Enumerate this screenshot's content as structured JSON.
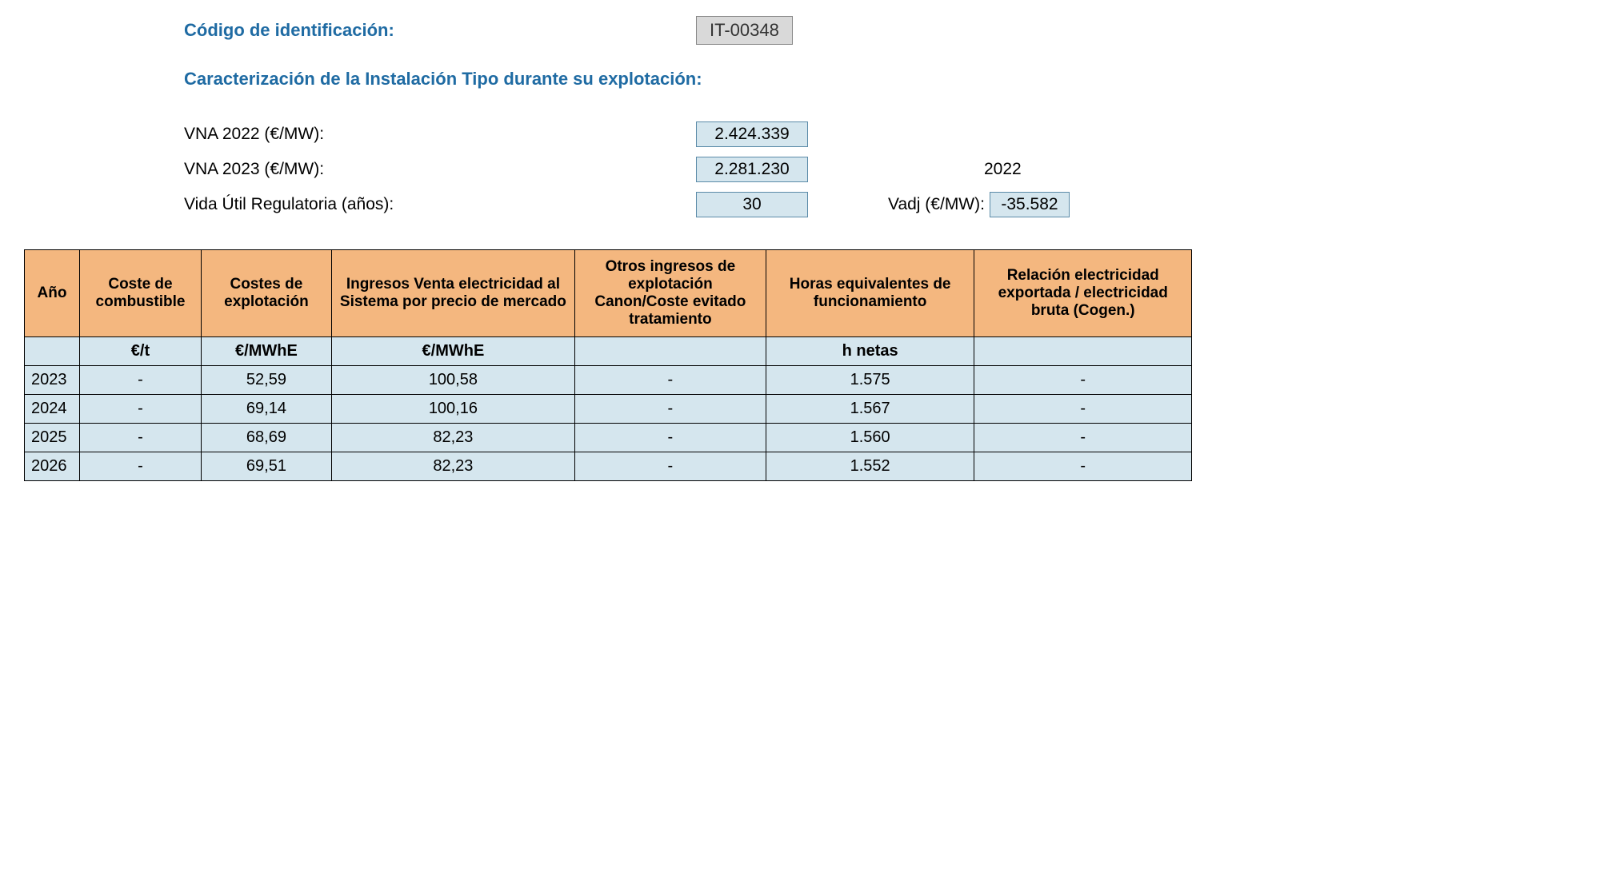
{
  "header": {
    "code_label": "Código de identificación:",
    "code_value": "IT-00348",
    "subtitle": "Caracterización de la Instalación Tipo durante su explotación:"
  },
  "params": {
    "vna2022_label": "VNA 2022 (€/MW):",
    "vna2022_value": "2.424.339",
    "vna2023_label": "VNA 2023 (€/MW):",
    "vna2023_value": "2.281.230",
    "year_ref": "2022",
    "life_label": "Vida Útil Regulatoria (años):",
    "life_value": "30",
    "vadj_label": "Vadj (€/MW):",
    "vadj_value": "-35.582"
  },
  "table": {
    "headers": {
      "year": "Año",
      "fuel": "Coste de combustible",
      "opex": "Costes de explotación",
      "income": "Ingresos Venta electricidad al Sistema por precio de mercado",
      "other": "Otros ingresos de explotación Canon/Coste evitado tratamiento",
      "hours": "Horas equivalentes de funcionamiento",
      "ratio": "Relación electricidad exportada / electricidad bruta (Cogen.)"
    },
    "units": {
      "year": "",
      "fuel": "€/t",
      "opex": "€/MWhE",
      "income": "€/MWhE",
      "other": "",
      "hours": "h netas",
      "ratio": ""
    },
    "rows": [
      {
        "year": "2023",
        "fuel": "-",
        "opex": "52,59",
        "income": "100,58",
        "other": "-",
        "hours": "1.575",
        "ratio": "-"
      },
      {
        "year": "2024",
        "fuel": "-",
        "opex": "69,14",
        "income": "100,16",
        "other": "-",
        "hours": "1.567",
        "ratio": "-"
      },
      {
        "year": "2025",
        "fuel": "-",
        "opex": "68,69",
        "income": "82,23",
        "other": "-",
        "hours": "1.560",
        "ratio": "-"
      },
      {
        "year": "2026",
        "fuel": "-",
        "opex": "69,51",
        "income": "82,23",
        "other": "-",
        "hours": "1.552",
        "ratio": "-"
      }
    ]
  },
  "colors": {
    "header_bg": "#f4b77f",
    "cell_bg": "#d5e6ee",
    "title_color": "#1f6ba3",
    "border_color": "#000000",
    "code_bg": "#d9d9d9"
  }
}
